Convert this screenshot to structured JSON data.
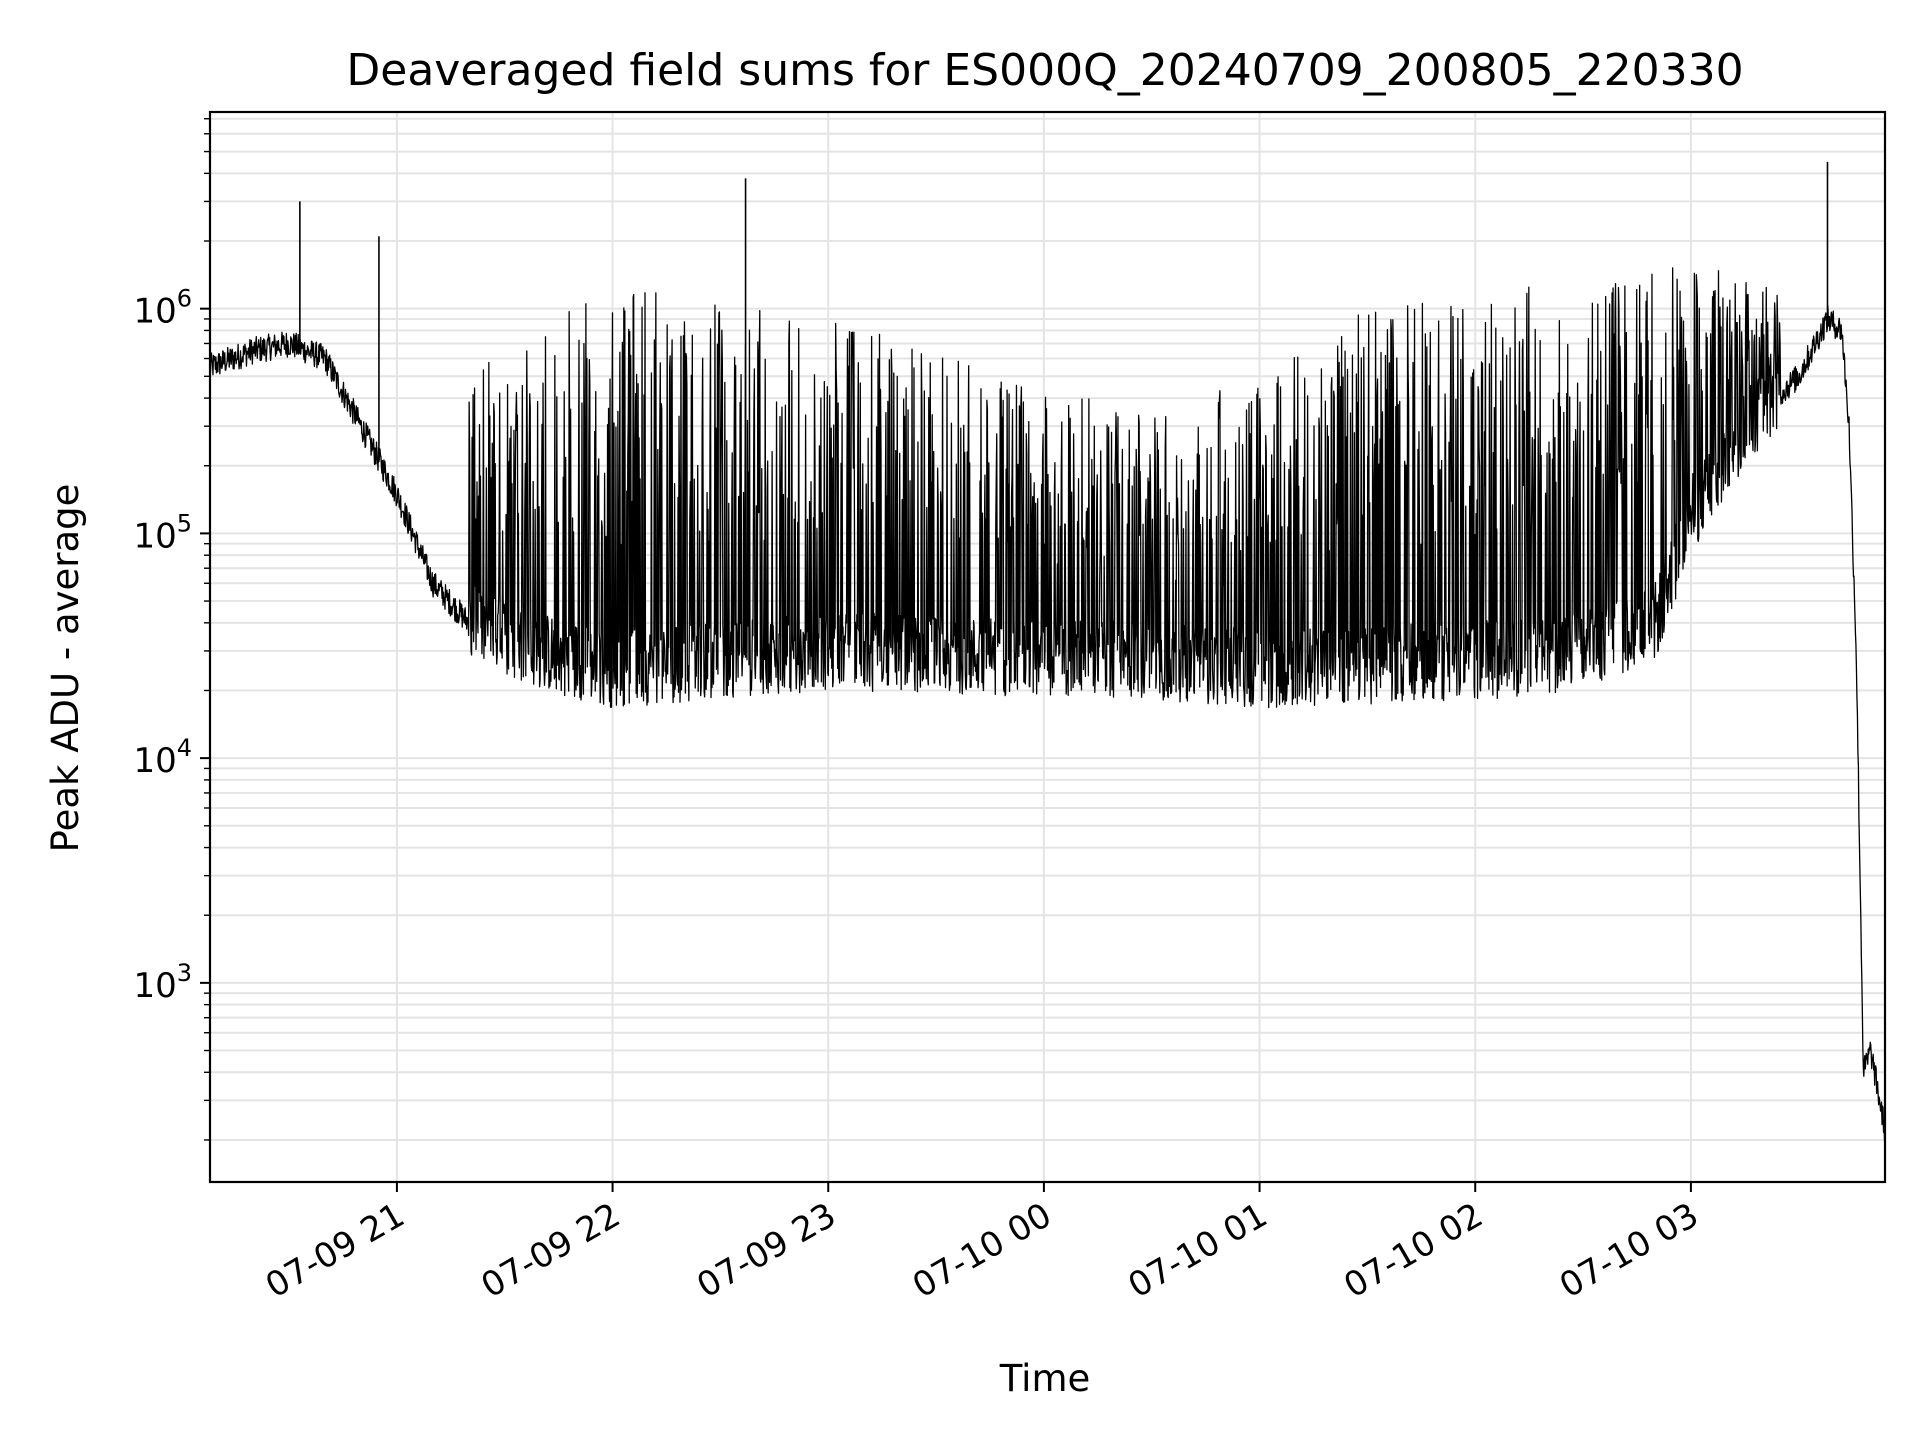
{
  "chart_data": {
    "type": "line",
    "title": "Deaveraged field sums for ES000Q_20240709_200805_220330",
    "xlabel": "Time",
    "ylabel": "Peak ADU - average",
    "yscale": "log",
    "ylim": [
      130,
      7500000
    ],
    "xlim": [
      "2024-07-09 20:08:05",
      "2024-07-10 03:54:00"
    ],
    "grid": true,
    "line_color": "#000000",
    "x_ticks": [
      {
        "label": "07-09 21",
        "t": "2024-07-09 21:00"
      },
      {
        "label": "07-09 22",
        "t": "2024-07-09 22:00"
      },
      {
        "label": "07-09 23",
        "t": "2024-07-09 23:00"
      },
      {
        "label": "07-10 00",
        "t": "2024-07-10 00:00"
      },
      {
        "label": "07-10 01",
        "t": "2024-07-10 01:00"
      },
      {
        "label": "07-10 02",
        "t": "2024-07-10 02:00"
      },
      {
        "label": "07-10 03",
        "t": "2024-07-10 03:00"
      }
    ],
    "y_ticks": [
      {
        "base": "10",
        "exp": "3",
        "value": 1000
      },
      {
        "base": "10",
        "exp": "4",
        "value": 10000
      },
      {
        "base": "10",
        "exp": "5",
        "value": 100000
      },
      {
        "base": "10",
        "exp": "6",
        "value": 1000000
      }
    ],
    "series": [
      {
        "baseline": [
          [
            "2024-07-09 20:08",
            550000
          ],
          [
            "2024-07-09 20:20",
            650000
          ],
          [
            "2024-07-09 20:30",
            700000
          ],
          [
            "2024-07-09 20:40",
            600000
          ],
          [
            "2024-07-09 20:50",
            300000
          ],
          [
            "2024-07-09 21:00",
            150000
          ],
          [
            "2024-07-09 21:10",
            60000
          ],
          [
            "2024-07-09 21:20",
            40000
          ],
          [
            "2024-07-09 21:40",
            30000
          ],
          [
            "2024-07-09 22:00",
            25000
          ],
          [
            "2024-07-09 23:00",
            30000
          ],
          [
            "2024-07-10 00:00",
            28000
          ],
          [
            "2024-07-10 00:30",
            27000
          ],
          [
            "2024-07-10 01:00",
            25000
          ],
          [
            "2024-07-10 01:30",
            26000
          ],
          [
            "2024-07-10 02:00",
            27000
          ],
          [
            "2024-07-10 02:30",
            30000
          ],
          [
            "2024-07-10 02:50",
            40000
          ],
          [
            "2024-07-10 03:00",
            120000
          ],
          [
            "2024-07-10 03:15",
            300000
          ],
          [
            "2024-07-10 03:30",
            500000
          ],
          [
            "2024-07-10 03:38",
            900000
          ],
          [
            "2024-07-10 03:42",
            800000
          ],
          [
            "2024-07-10 03:44",
            300000
          ],
          [
            "2024-07-10 03:46",
            30000
          ],
          [
            "2024-07-10 03:48",
            400
          ],
          [
            "2024-07-10 03:50",
            500
          ],
          [
            "2024-07-10 03:54",
            220
          ]
        ],
        "spike_peak_envelope": [
          [
            "2024-07-09 21:20",
            500000
          ],
          [
            "2024-07-09 21:45",
            1100000
          ],
          [
            "2024-07-09 22:15",
            1200000
          ],
          [
            "2024-07-09 22:45",
            1000000
          ],
          [
            "2024-07-09 23:15",
            800000
          ],
          [
            "2024-07-10 00:00",
            450000
          ],
          [
            "2024-07-10 00:30",
            350000
          ],
          [
            "2024-07-10 01:00",
            500000
          ],
          [
            "2024-07-10 01:30",
            1000000
          ],
          [
            "2024-07-10 02:00",
            1200000
          ],
          [
            "2024-07-10 02:30",
            1400000
          ],
          [
            "2024-07-10 03:00",
            1600000
          ],
          [
            "2024-07-10 03:25",
            1300000
          ]
        ],
        "large_spikes": [
          [
            "2024-07-09 20:33",
            3000000
          ],
          [
            "2024-07-09 20:55",
            2100000
          ],
          [
            "2024-07-09 22:37",
            3800000
          ],
          [
            "2024-07-10 03:38",
            4500000
          ]
        ]
      }
    ]
  }
}
